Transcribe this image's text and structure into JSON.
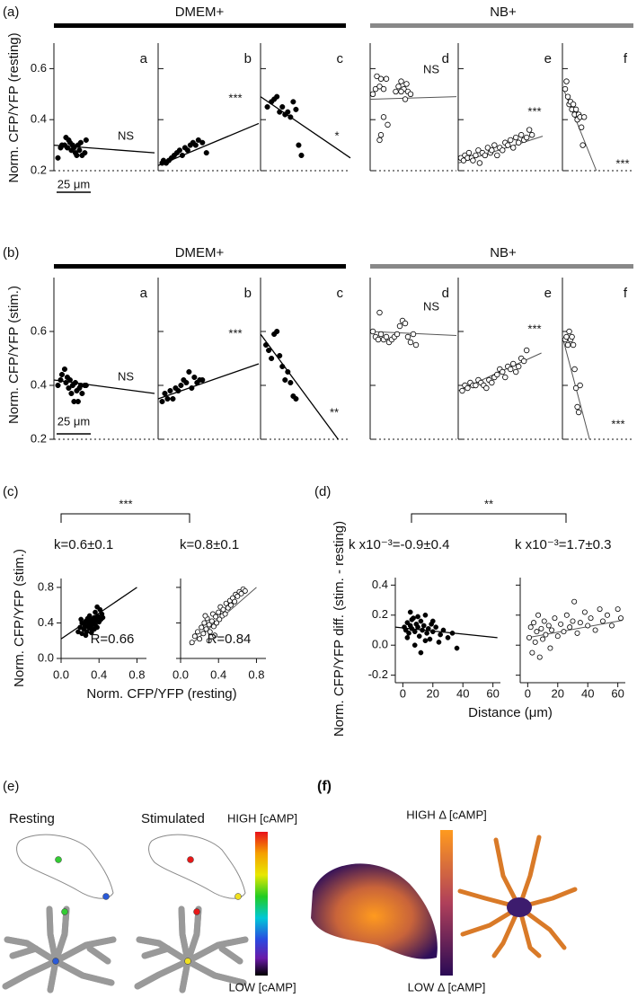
{
  "panels": [
    {
      "label": "(a)",
      "ylabel": "Norm. CFP/YFP (resting)",
      "groups": [
        "DMEM+",
        "NB+"
      ],
      "scalebar": "25 μm"
    },
    {
      "label": "(b)",
      "ylabel": "Norm. CFP/YFP (stim.)",
      "groups": [
        "DMEM+",
        "NB+"
      ],
      "scalebar": "25 μm"
    },
    {
      "label": "(c)",
      "ylabel": "Norm. CFP/YFP (stim.)",
      "xlabel": "Norm. CFP/YFP (resting)",
      "significance": "***"
    },
    {
      "label": "(d)",
      "ylabel": "Norm. CFP/YFP diff. (stim. - resting)",
      "xlabel": "Distance (μm)",
      "significance": "**"
    },
    {
      "label": "(e)",
      "conditions": [
        "Resting",
        "Stimulated"
      ],
      "colorbar": [
        "HIGH [cAMP]",
        "LOW [cAMP]"
      ]
    },
    {
      "label": "(f)",
      "colorbar": [
        "HIGH Δ [cAMP]",
        "LOW Δ [cAMP]"
      ]
    }
  ],
  "chart_data": [
    {
      "type": "scatter",
      "letter": "a",
      "marker": "filled",
      "annotation": "NS",
      "xlim": [
        0,
        75
      ],
      "ylim": [
        0.2,
        0.7
      ],
      "yticks": [
        0.2,
        0.4,
        0.6
      ],
      "ytick_labels": true,
      "x": [
        3,
        5,
        6,
        8,
        9,
        10,
        11,
        12,
        13,
        14,
        15,
        16,
        17,
        18,
        19,
        20,
        21,
        23,
        24
      ],
      "values": [
        0.25,
        0.29,
        0.3,
        0.3,
        0.33,
        0.29,
        0.32,
        0.31,
        0.28,
        0.3,
        0.29,
        0.27,
        0.26,
        0.3,
        0.28,
        0.31,
        0.26,
        0.27,
        0.32
      ],
      "fit": {
        "x": [
          0,
          75
        ],
        "y": [
          0.3,
          0.27
        ]
      }
    },
    {
      "type": "scatter",
      "letter": "b",
      "marker": "filled",
      "annotation": "***",
      "xlim": [
        0,
        75
      ],
      "ylim": [
        0.2,
        0.7
      ],
      "yticks": [
        0.2,
        0.4,
        0.6
      ],
      "ytick_labels": false,
      "x": [
        3,
        4,
        6,
        8,
        10,
        12,
        14,
        16,
        18,
        20,
        22,
        24,
        26,
        28,
        30,
        33,
        36
      ],
      "values": [
        0.23,
        0.24,
        0.23,
        0.24,
        0.25,
        0.26,
        0.27,
        0.28,
        0.26,
        0.29,
        0.28,
        0.3,
        0.31,
        0.3,
        0.32,
        0.31,
        0.27
      ],
      "fit": {
        "x": [
          0,
          75
        ],
        "y": [
          0.22,
          0.385
        ]
      }
    },
    {
      "type": "scatter",
      "letter": "c",
      "marker": "filled",
      "annotation": "*",
      "xlim": [
        0,
        66
      ],
      "ylim": [
        0.2,
        0.7
      ],
      "yticks": [
        0.2,
        0.4,
        0.6
      ],
      "ytick_labels": false,
      "x": [
        5,
        8,
        10,
        12,
        14,
        16,
        18,
        20,
        22,
        24,
        26,
        28,
        30
      ],
      "values": [
        0.45,
        0.47,
        0.48,
        0.49,
        0.43,
        0.45,
        0.42,
        0.43,
        0.41,
        0.47,
        0.44,
        0.3,
        0.26
      ],
      "fit": {
        "x": [
          0,
          66
        ],
        "y": [
          0.49,
          0.25
        ]
      }
    },
    {
      "type": "scatter",
      "letter": "d",
      "marker": "open",
      "annotation": "NS",
      "xlim": [
        0,
        64
      ],
      "ylim": [
        0.2,
        0.7
      ],
      "yticks": [
        0.2,
        0.4,
        0.6
      ],
      "ytick_labels": false,
      "x": [
        2,
        4,
        5,
        7,
        8,
        10,
        12,
        10,
        13,
        8,
        7,
        19,
        21,
        23,
        25,
        27,
        28,
        30,
        23,
        26
      ],
      "values": [
        0.5,
        0.52,
        0.57,
        0.53,
        0.56,
        0.52,
        0.56,
        0.41,
        0.38,
        0.34,
        0.32,
        0.51,
        0.53,
        0.55,
        0.52,
        0.54,
        0.51,
        0.5,
        0.51,
        0.48
      ],
      "fit": {
        "x": [
          0,
          64
        ],
        "y": [
          0.48,
          0.49
        ]
      }
    },
    {
      "type": "scatter",
      "letter": "e",
      "marker": "open",
      "annotation": "***",
      "xlim": [
        0,
        75
      ],
      "ylim": [
        0.2,
        0.7
      ],
      "yticks": [
        0.2,
        0.4,
        0.6
      ],
      "ytick_labels": false,
      "x": [
        2,
        4,
        5,
        7,
        8,
        10,
        11,
        13,
        15,
        16,
        18,
        20,
        22,
        24,
        25,
        27,
        29,
        31,
        33,
        35,
        37,
        39,
        41,
        43,
        45,
        47,
        49,
        51,
        53,
        55
      ],
      "values": [
        0.25,
        0.24,
        0.26,
        0.25,
        0.27,
        0.25,
        0.24,
        0.26,
        0.28,
        0.23,
        0.27,
        0.26,
        0.29,
        0.27,
        0.28,
        0.3,
        0.26,
        0.29,
        0.28,
        0.31,
        0.3,
        0.32,
        0.29,
        0.33,
        0.31,
        0.34,
        0.32,
        0.33,
        0.36,
        0.34
      ],
      "fit": {
        "x": [
          0,
          63
        ],
        "y": [
          0.23,
          0.335
        ]
      }
    },
    {
      "type": "scatter",
      "letter": "f",
      "marker": "open",
      "annotation": "***",
      "xlim": [
        0,
        53
      ],
      "ylim": [
        0.2,
        0.7
      ],
      "yticks": [
        0.2,
        0.4,
        0.6
      ],
      "ytick_labels": false,
      "x": [
        2,
        3,
        4,
        5,
        6,
        7,
        8,
        9,
        10,
        11,
        12,
        13,
        14,
        15,
        16
      ],
      "values": [
        0.52,
        0.55,
        0.49,
        0.46,
        0.47,
        0.44,
        0.46,
        0.42,
        0.44,
        0.4,
        0.42,
        0.41,
        0.37,
        0.3,
        0.41
      ],
      "fit": {
        "x": [
          0,
          25
        ],
        "y": [
          0.53,
          0.2
        ]
      }
    },
    {
      "type": "scatter",
      "letter": "a",
      "marker": "filled",
      "annotation": "NS",
      "xlim": [
        0,
        75
      ],
      "ylim": [
        0.2,
        0.8
      ],
      "yticks": [
        0.2,
        0.4,
        0.6
      ],
      "ytick_labels": true,
      "x": [
        3,
        5,
        6,
        8,
        9,
        10,
        11,
        12,
        13,
        14,
        15,
        16,
        17,
        18,
        19,
        20,
        21,
        23,
        24
      ],
      "values": [
        0.4,
        0.42,
        0.44,
        0.46,
        0.41,
        0.43,
        0.39,
        0.42,
        0.37,
        0.4,
        0.34,
        0.41,
        0.38,
        0.34,
        0.39,
        0.4,
        0.37,
        0.4,
        0.4
      ],
      "fit": {
        "x": [
          0,
          75
        ],
        "y": [
          0.42,
          0.37
        ]
      }
    },
    {
      "type": "scatter",
      "letter": "b",
      "marker": "filled",
      "annotation": "***",
      "xlim": [
        0,
        75
      ],
      "ylim": [
        0.2,
        0.8
      ],
      "yticks": [
        0.2,
        0.4,
        0.6
      ],
      "ytick_labels": false,
      "x": [
        3,
        5,
        7,
        9,
        11,
        13,
        15,
        17,
        19,
        21,
        23,
        25,
        27,
        29,
        31,
        33
      ],
      "values": [
        0.34,
        0.37,
        0.35,
        0.38,
        0.35,
        0.39,
        0.38,
        0.4,
        0.42,
        0.41,
        0.45,
        0.39,
        0.43,
        0.41,
        0.42,
        0.42
      ],
      "fit": {
        "x": [
          0,
          75
        ],
        "y": [
          0.35,
          0.48
        ]
      }
    },
    {
      "type": "scatter",
      "letter": "c",
      "marker": "filled",
      "annotation": "**",
      "xlim": [
        0,
        66
      ],
      "ylim": [
        0.2,
        0.8
      ],
      "yticks": [
        0.2,
        0.4,
        0.6
      ],
      "ytick_labels": false,
      "x": [
        4,
        6,
        8,
        10,
        12,
        14,
        16,
        18,
        20,
        22,
        24,
        26
      ],
      "values": [
        0.55,
        0.53,
        0.5,
        0.59,
        0.6,
        0.51,
        0.47,
        0.42,
        0.45,
        0.41,
        0.36,
        0.35
      ],
      "fit": {
        "x": [
          0,
          57
        ],
        "y": [
          0.59,
          0.2
        ]
      }
    },
    {
      "type": "scatter",
      "letter": "d",
      "marker": "open",
      "annotation": "NS",
      "xlim": [
        0,
        64
      ],
      "ylim": [
        0.2,
        0.8
      ],
      "yticks": [
        0.2,
        0.4,
        0.6
      ],
      "ytick_labels": false,
      "x": [
        2,
        4,
        6,
        8,
        10,
        12,
        14,
        16,
        18,
        20,
        22,
        24,
        26,
        28,
        30,
        32,
        34,
        7
      ],
      "values": [
        0.6,
        0.58,
        0.57,
        0.59,
        0.57,
        0.58,
        0.56,
        0.57,
        0.58,
        0.59,
        0.62,
        0.64,
        0.63,
        0.58,
        0.56,
        0.59,
        0.55,
        0.67
      ],
      "fit": {
        "x": [
          0,
          64
        ],
        "y": [
          0.6,
          0.585
        ]
      }
    },
    {
      "type": "scatter",
      "letter": "e",
      "marker": "open",
      "annotation": "***",
      "xlim": [
        0,
        75
      ],
      "ylim": [
        0.2,
        0.8
      ],
      "yticks": [
        0.2,
        0.4,
        0.6
      ],
      "ytick_labels": false,
      "x": [
        3,
        5,
        7,
        9,
        11,
        13,
        15,
        17,
        19,
        21,
        23,
        25,
        27,
        29,
        31,
        33,
        35,
        37,
        39,
        41,
        43,
        45,
        47,
        49,
        51
      ],
      "values": [
        0.38,
        0.4,
        0.39,
        0.41,
        0.4,
        0.4,
        0.42,
        0.41,
        0.4,
        0.39,
        0.42,
        0.41,
        0.43,
        0.44,
        0.46,
        0.45,
        0.43,
        0.47,
        0.46,
        0.48,
        0.45,
        0.47,
        0.5,
        0.49,
        0.53
      ],
      "fit": {
        "x": [
          0,
          62
        ],
        "y": [
          0.38,
          0.52
        ]
      }
    },
    {
      "type": "scatter",
      "letter": "f",
      "marker": "open",
      "annotation": "***",
      "xlim": [
        0,
        53
      ],
      "ylim": [
        0.2,
        0.8
      ],
      "yticks": [
        0.2,
        0.4,
        0.6
      ],
      "ytick_labels": false,
      "x": [
        2,
        3,
        4,
        5,
        6,
        7,
        8,
        9,
        10,
        11,
        12,
        13
      ],
      "values": [
        0.57,
        0.58,
        0.55,
        0.6,
        0.57,
        0.58,
        0.55,
        0.46,
        0.39,
        0.32,
        0.3,
        0.4
      ],
      "fit": {
        "x": [
          0,
          20
        ],
        "y": [
          0.58,
          0.2
        ]
      }
    },
    {
      "type": "scatter",
      "marker": "filled",
      "annotation": "R=0.66",
      "k_label": "k=0.6±0.1",
      "xlim": [
        0,
        0.9
      ],
      "ylim": [
        0,
        0.9
      ],
      "xticks": [
        {
          "value": 0,
          "label": "0.0"
        },
        0.4,
        0.8
      ],
      "yticks": [
        {
          "value": 0,
          "label": "0.0"
        },
        0.4,
        0.8
      ],
      "ytick_labels": true,
      "x": [
        0.18,
        0.2,
        0.22,
        0.22,
        0.24,
        0.25,
        0.26,
        0.27,
        0.28,
        0.28,
        0.29,
        0.3,
        0.3,
        0.31,
        0.32,
        0.33,
        0.33,
        0.34,
        0.35,
        0.36,
        0.36,
        0.37,
        0.38,
        0.39,
        0.4,
        0.41,
        0.42,
        0.43,
        0.44,
        0.26,
        0.21,
        0.32,
        0.38,
        0.35,
        0.29
      ],
      "values": [
        0.3,
        0.35,
        0.28,
        0.4,
        0.33,
        0.37,
        0.42,
        0.3,
        0.45,
        0.36,
        0.39,
        0.34,
        0.48,
        0.41,
        0.37,
        0.44,
        0.32,
        0.4,
        0.46,
        0.38,
        0.52,
        0.43,
        0.35,
        0.47,
        0.41,
        0.55,
        0.44,
        0.5,
        0.46,
        0.26,
        0.44,
        0.29,
        0.58,
        0.33,
        0.43
      ],
      "fit": {
        "x": [
          0,
          0.8
        ],
        "y": [
          0.22,
          0.8
        ]
      }
    },
    {
      "type": "scatter",
      "marker": "open",
      "annotation": "R=0.84",
      "k_label": "k=0.8±0.1",
      "xlim": [
        0,
        0.9
      ],
      "ylim": [
        0,
        0.9
      ],
      "xticks": [
        {
          "value": 0,
          "label": "0.0"
        },
        0.4,
        0.8
      ],
      "yticks": [
        {
          "value": 0,
          "label": "0.0"
        },
        0.4,
        0.8
      ],
      "ytick_labels": false,
      "x": [
        0.12,
        0.15,
        0.18,
        0.2,
        0.22,
        0.24,
        0.25,
        0.27,
        0.28,
        0.3,
        0.31,
        0.33,
        0.34,
        0.35,
        0.37,
        0.38,
        0.4,
        0.41,
        0.42,
        0.44,
        0.45,
        0.47,
        0.48,
        0.5,
        0.52,
        0.53,
        0.55,
        0.57,
        0.58,
        0.6,
        0.62,
        0.64,
        0.66,
        0.68,
        0.3,
        0.36,
        0.26
      ],
      "values": [
        0.18,
        0.25,
        0.3,
        0.22,
        0.35,
        0.28,
        0.4,
        0.33,
        0.45,
        0.38,
        0.3,
        0.42,
        0.5,
        0.36,
        0.47,
        0.4,
        0.52,
        0.44,
        0.58,
        0.48,
        0.55,
        0.5,
        0.62,
        0.57,
        0.65,
        0.6,
        0.68,
        0.64,
        0.72,
        0.7,
        0.75,
        0.73,
        0.78,
        0.76,
        0.2,
        0.26,
        0.48
      ],
      "fit": {
        "x": [
          0.1,
          0.8
        ],
        "y": [
          0.15,
          0.8
        ]
      }
    },
    {
      "type": "scatter",
      "marker": "filled",
      "k_label": "k x10⁻³=-0.9±0.4",
      "xlim": [
        -5,
        65
      ],
      "ylim": [
        -0.25,
        0.45
      ],
      "xticks": [
        0,
        20,
        40,
        60
      ],
      "yticks": [
        -0.2,
        {
          "value": 0,
          "label": "0.0"
        },
        0.2,
        0.4
      ],
      "ytick_labels": true,
      "x": [
        1,
        2,
        3,
        4,
        5,
        6,
        7,
        8,
        9,
        10,
        11,
        12,
        13,
        14,
        15,
        16,
        17,
        18,
        19,
        20,
        22,
        24,
        25,
        27,
        30,
        33,
        36,
        5,
        8,
        12,
        3,
        6,
        10,
        15,
        20
      ],
      "values": [
        0.12,
        0.1,
        0.15,
        0.08,
        0.13,
        0.11,
        0.18,
        0.09,
        0.14,
        0.12,
        0.06,
        0.16,
        0.1,
        0.13,
        0.2,
        0.08,
        0.11,
        0.04,
        0.14,
        0.09,
        0.12,
        0.02,
        0.07,
        0.1,
        0.05,
        0.08,
        -0.02,
        0.22,
        0.0,
        -0.05,
        0.05,
        0.17,
        0.19,
        0.03,
        0.16
      ],
      "fit": {
        "x": [
          -5,
          63
        ],
        "y": [
          0.12,
          0.05
        ]
      }
    },
    {
      "type": "scatter",
      "marker": "open",
      "k_label": "k x10⁻³=1.7±0.3",
      "xlim": [
        -5,
        65
      ],
      "ylim": [
        -0.25,
        0.45
      ],
      "xticks": [
        0,
        20,
        40,
        60
      ],
      "yticks": [
        -0.2,
        {
          "value": 0,
          "label": "0.0"
        },
        0.2,
        0.4
      ],
      "ytick_labels": false,
      "x": [
        1,
        2,
        3,
        4,
        5,
        6,
        7,
        8,
        9,
        10,
        11,
        12,
        14,
        15,
        16,
        18,
        20,
        22,
        24,
        26,
        28,
        30,
        31,
        33,
        35,
        38,
        40,
        42,
        45,
        48,
        50,
        53,
        56,
        60,
        62
      ],
      "values": [
        0.05,
        0.12,
        -0.05,
        0.15,
        0.02,
        0.09,
        0.2,
        -0.08,
        0.11,
        0.04,
        0.16,
        0.07,
        0.13,
        -0.02,
        0.1,
        0.18,
        0.06,
        0.14,
        0.09,
        0.2,
        0.12,
        0.16,
        0.29,
        0.08,
        0.15,
        0.22,
        0.13,
        0.18,
        0.1,
        0.24,
        0.16,
        0.2,
        0.13,
        0.24,
        0.18
      ],
      "fit": {
        "x": [
          0,
          63
        ],
        "y": [
          0.05,
          0.165
        ]
      }
    }
  ]
}
